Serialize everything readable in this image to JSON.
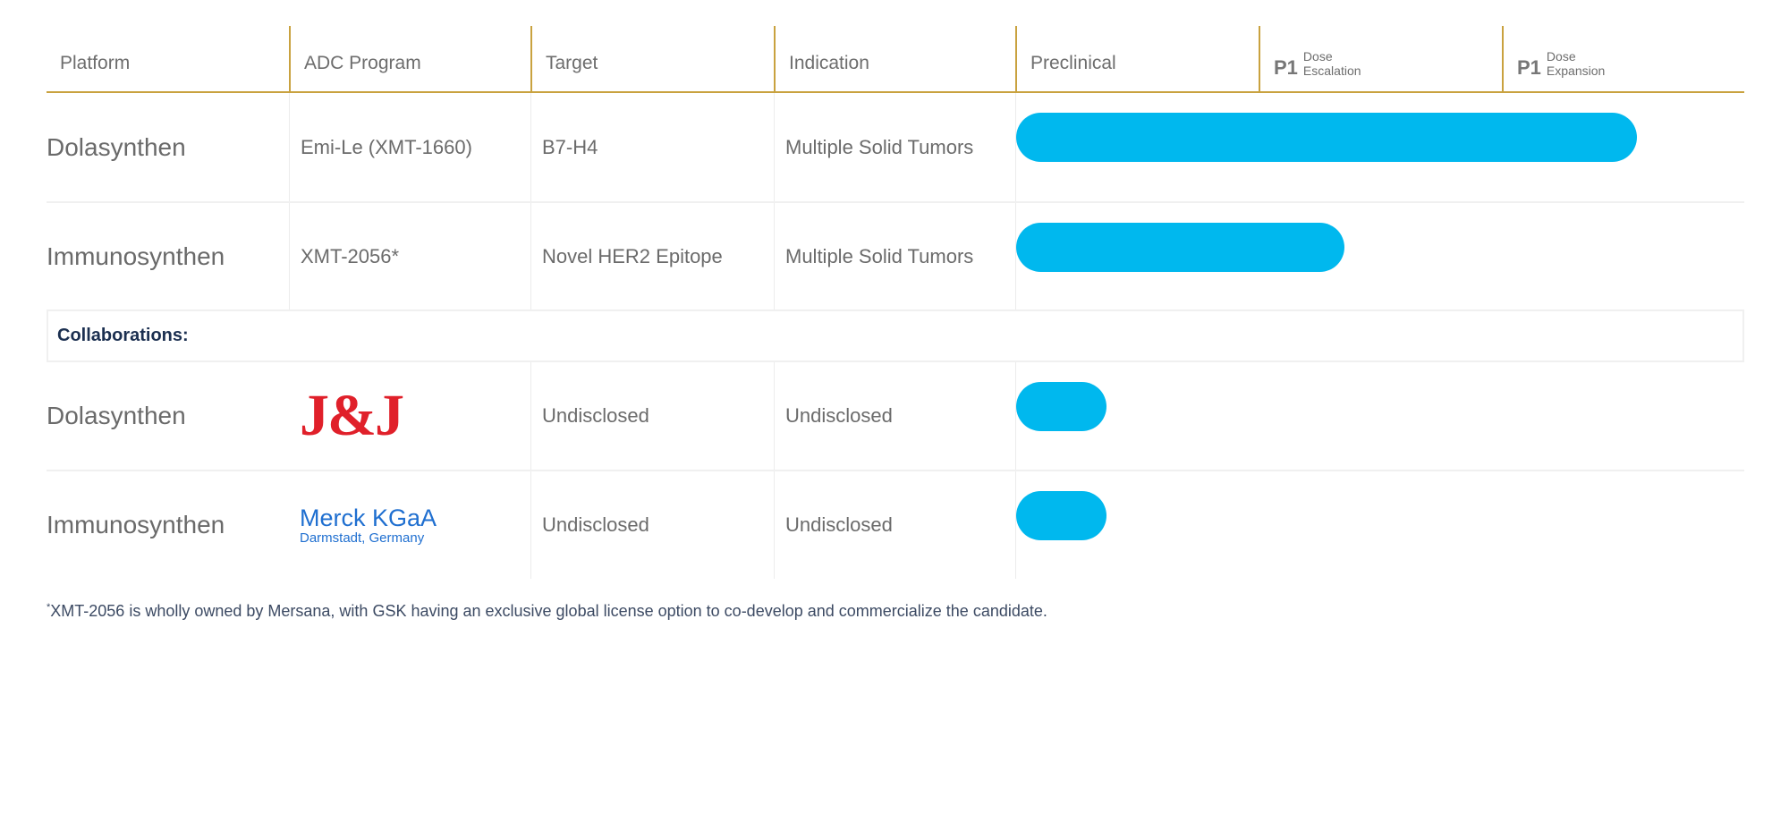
{
  "header": {
    "columns": [
      "Platform",
      "ADC Program",
      "Target",
      "Indication",
      "Preclinical"
    ],
    "p1_escalation": {
      "prefix": "P1",
      "line1": "Dose",
      "line2": "Escalation"
    },
    "p1_expansion": {
      "prefix": "P1",
      "line1": "Dose",
      "line2": "Expansion"
    }
  },
  "rows": [
    {
      "platform": "Dolasynthen",
      "program": "Emi-Le (XMT-1660)",
      "target": "B7-H4",
      "indication": "Multiple Solid Tumors",
      "progress_phases": 2.55
    },
    {
      "platform": "Immunosynthen",
      "program": "XMT-2056*",
      "target": "Novel HER2 Epitope",
      "indication": "Multiple Solid Tumors",
      "progress_phases": 1.35
    }
  ],
  "collaborations_label": "Collaborations:",
  "collab_rows": [
    {
      "platform": "Dolasynthen",
      "partner_logo": "J&J",
      "target": "Undisclosed",
      "indication": "Undisclosed",
      "progress_phases": 0.37
    },
    {
      "platform": "Immunosynthen",
      "partner_logo": "Merck KGaA",
      "partner_sub": "Darmstadt, Germany",
      "target": "Undisclosed",
      "indication": "Undisclosed",
      "progress_phases": 0.37
    }
  ],
  "footnote": {
    "mark": "*",
    "text": "XMT-2056 is wholly owned by Mersana, with GSK having an exclusive global license option to co-develop and commercialize the candidate."
  },
  "colors": {
    "bar": "#00b8ee",
    "header_rule": "#c9a23f",
    "collab_label": "#1b2f50",
    "jj_red": "#e0202a",
    "merck_blue": "#1f6fd0"
  }
}
